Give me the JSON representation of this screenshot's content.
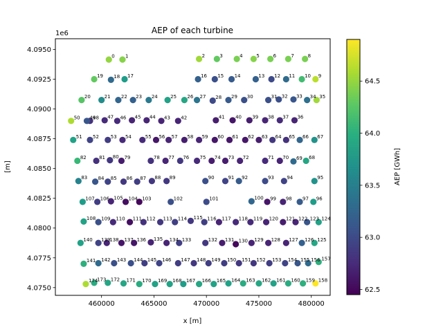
{
  "chart_data": {
    "type": "scatter",
    "title": "AEP of each turbine",
    "xlabel": "x [m]",
    "ylabel": "[m]",
    "y_offset_label": "1e6",
    "colorbar_label": "AEP [GWh]",
    "colormap": "viridis",
    "clim": [
      62.45,
      64.9
    ],
    "colorbar_ticks": [
      "62.5",
      "63.0",
      "63.5",
      "64.0",
      "64.5"
    ],
    "colorbar_tick_values": [
      62.5,
      63.0,
      63.5,
      64.0,
      64.5
    ],
    "xlim": [
      455600,
      481800
    ],
    "ylim": [
      4074350,
      4095900
    ],
    "x_ticks": [
      "460000",
      "465000",
      "470000",
      "475000",
      "480000"
    ],
    "x_tick_values": [
      460000,
      465000,
      470000,
      475000,
      480000
    ],
    "y_ticks": [
      "4.0750",
      "4.0775",
      "4.0800",
      "4.0825",
      "4.0850",
      "4.0875",
      "4.0900",
      "4.0925",
      "4.0950"
    ],
    "y_tick_values": [
      4075000,
      4077500,
      4080000,
      4082500,
      4085000,
      4087500,
      4090000,
      4092500,
      4095000
    ],
    "points": [
      {
        "label": "0",
        "x": 460700,
        "y": 4094150,
        "aep": 64.5
      },
      {
        "label": "1",
        "x": 462000,
        "y": 4094150,
        "aep": 64.45
      },
      {
        "label": "2",
        "x": 469300,
        "y": 4094200,
        "aep": 64.55
      },
      {
        "label": "3",
        "x": 471000,
        "y": 4094200,
        "aep": 64.3
      },
      {
        "label": "4",
        "x": 472900,
        "y": 4094200,
        "aep": 64.4
      },
      {
        "label": "5",
        "x": 474500,
        "y": 4094200,
        "aep": 64.45
      },
      {
        "label": "6",
        "x": 476100,
        "y": 4094200,
        "aep": 64.4
      },
      {
        "label": "7",
        "x": 477800,
        "y": 4094200,
        "aep": 64.4
      },
      {
        "label": "8",
        "x": 479400,
        "y": 4094200,
        "aep": 64.4
      },
      {
        "label": "9",
        "x": 480400,
        "y": 4092500,
        "aep": 64.65
      },
      {
        "label": "10",
        "x": 479100,
        "y": 4092500,
        "aep": 64.15
      },
      {
        "label": "11",
        "x": 477600,
        "y": 4092500,
        "aep": 63.3
      },
      {
        "label": "12",
        "x": 476200,
        "y": 4092500,
        "aep": 63.0
      },
      {
        "label": "13",
        "x": 474700,
        "y": 4092500,
        "aep": 63.2
      },
      {
        "label": "14",
        "x": 472400,
        "y": 4092500,
        "aep": 63.15
      },
      {
        "label": "15",
        "x": 470800,
        "y": 4092500,
        "aep": 63.05
      },
      {
        "label": "16",
        "x": 469200,
        "y": 4092500,
        "aep": 63.2
      },
      {
        "label": "17",
        "x": 462200,
        "y": 4092500,
        "aep": 63.8
      },
      {
        "label": "18",
        "x": 460900,
        "y": 4092450,
        "aep": 63.3
      },
      {
        "label": "19",
        "x": 459300,
        "y": 4092500,
        "aep": 64.3
      },
      {
        "label": "20",
        "x": 458100,
        "y": 4090750,
        "aep": 64.25
      },
      {
        "label": "21",
        "x": 460000,
        "y": 4090750,
        "aep": 63.65
      },
      {
        "label": "22",
        "x": 461600,
        "y": 4090750,
        "aep": 63.25
      },
      {
        "label": "23",
        "x": 463000,
        "y": 4090750,
        "aep": 63.2
      },
      {
        "label": "24",
        "x": 464500,
        "y": 4090750,
        "aep": 63.45
      },
      {
        "label": "25",
        "x": 466300,
        "y": 4090750,
        "aep": 63.85
      },
      {
        "label": "26",
        "x": 467900,
        "y": 4090750,
        "aep": 63.9
      },
      {
        "label": "27",
        "x": 469100,
        "y": 4090750,
        "aep": 63.4
      },
      {
        "label": "28",
        "x": 470600,
        "y": 4090700,
        "aep": 63.0
      },
      {
        "label": "29",
        "x": 472100,
        "y": 4090750,
        "aep": 63.15
      },
      {
        "label": "30",
        "x": 473600,
        "y": 4090750,
        "aep": 63.05
      },
      {
        "label": "31",
        "x": 475900,
        "y": 4090750,
        "aep": 63.05
      },
      {
        "label": "32",
        "x": 476900,
        "y": 4090800,
        "aep": 63.05
      },
      {
        "label": "33",
        "x": 478300,
        "y": 4090800,
        "aep": 63.1
      },
      {
        "label": "34",
        "x": 479600,
        "y": 4090750,
        "aep": 63.35
      },
      {
        "label": "35",
        "x": 480500,
        "y": 4090750,
        "aep": 64.55
      },
      {
        "label": "36",
        "x": 478400,
        "y": 4089050,
        "aep": 62.7
      },
      {
        "label": "37",
        "x": 477000,
        "y": 4089050,
        "aep": 62.75
      },
      {
        "label": "38",
        "x": 475600,
        "y": 4089050,
        "aep": 62.7
      },
      {
        "label": "39",
        "x": 474100,
        "y": 4089050,
        "aep": 62.65
      },
      {
        "label": "40",
        "x": 472500,
        "y": 4089050,
        "aep": 62.6
      },
      {
        "label": "41",
        "x": 470900,
        "y": 4089050,
        "aep": 62.65
      },
      {
        "label": "42",
        "x": 467300,
        "y": 4089000,
        "aep": 62.7
      },
      {
        "label": "43",
        "x": 465700,
        "y": 4089000,
        "aep": 62.7
      },
      {
        "label": "44",
        "x": 464300,
        "y": 4089050,
        "aep": 62.7
      },
      {
        "label": "45",
        "x": 462900,
        "y": 4089050,
        "aep": 62.7
      },
      {
        "label": "46",
        "x": 461500,
        "y": 4089000,
        "aep": 62.75
      },
      {
        "label": "47",
        "x": 460300,
        "y": 4089050,
        "aep": 62.75
      },
      {
        "label": "48",
        "x": 458900,
        "y": 4089000,
        "aep": 62.8
      },
      {
        "label": "49",
        "x": 458600,
        "y": 4089000,
        "aep": 63.1
      },
      {
        "label": "50",
        "x": 457100,
        "y": 4089000,
        "aep": 64.6
      },
      {
        "label": "51",
        "x": 457300,
        "y": 4087400,
        "aep": 63.85
      },
      {
        "label": "52",
        "x": 458900,
        "y": 4087400,
        "aep": 62.95
      },
      {
        "label": "53",
        "x": 460600,
        "y": 4087400,
        "aep": 62.9
      },
      {
        "label": "54",
        "x": 462000,
        "y": 4087400,
        "aep": 62.75
      },
      {
        "label": "55",
        "x": 463900,
        "y": 4087400,
        "aep": 62.75
      },
      {
        "label": "56",
        "x": 465200,
        "y": 4087400,
        "aep": 62.6
      },
      {
        "label": "57",
        "x": 466400,
        "y": 4087400,
        "aep": 62.7
      },
      {
        "label": "58",
        "x": 467900,
        "y": 4087400,
        "aep": 62.65
      },
      {
        "label": "59",
        "x": 469300,
        "y": 4087400,
        "aep": 62.7
      },
      {
        "label": "60",
        "x": 470800,
        "y": 4087400,
        "aep": 62.6
      },
      {
        "label": "61",
        "x": 472200,
        "y": 4087400,
        "aep": 62.6
      },
      {
        "label": "62",
        "x": 473700,
        "y": 4087400,
        "aep": 62.6
      },
      {
        "label": "63",
        "x": 475000,
        "y": 4087400,
        "aep": 62.65
      },
      {
        "label": "64",
        "x": 476300,
        "y": 4087400,
        "aep": 62.85
      },
      {
        "label": "65",
        "x": 477600,
        "y": 4087400,
        "aep": 62.8
      },
      {
        "label": "66",
        "x": 478900,
        "y": 4087400,
        "aep": 63.25
      },
      {
        "label": "67",
        "x": 480300,
        "y": 4087400,
        "aep": 63.7
      },
      {
        "label": "68",
        "x": 479500,
        "y": 4085650,
        "aep": 63.9
      },
      {
        "label": "69",
        "x": 478300,
        "y": 4085600,
        "aep": 63.3
      },
      {
        "label": "70",
        "x": 477000,
        "y": 4085650,
        "aep": 62.7
      },
      {
        "label": "71",
        "x": 475600,
        "y": 4085650,
        "aep": 62.75
      },
      {
        "label": "72",
        "x": 473200,
        "y": 4085650,
        "aep": 62.7
      },
      {
        "label": "73",
        "x": 471800,
        "y": 4085650,
        "aep": 62.65
      },
      {
        "label": "74",
        "x": 470500,
        "y": 4085650,
        "aep": 62.65
      },
      {
        "label": "75",
        "x": 469100,
        "y": 4085650,
        "aep": 62.75
      },
      {
        "label": "76",
        "x": 467500,
        "y": 4085650,
        "aep": 62.85
      },
      {
        "label": "77",
        "x": 466100,
        "y": 4085650,
        "aep": 62.7
      },
      {
        "label": "78",
        "x": 464700,
        "y": 4085650,
        "aep": 62.8
      },
      {
        "label": "79",
        "x": 461900,
        "y": 4085650,
        "aep": 62.65
      },
      {
        "label": "80",
        "x": 460800,
        "y": 4085700,
        "aep": 62.85
      },
      {
        "label": "81",
        "x": 459500,
        "y": 4085650,
        "aep": 62.8
      },
      {
        "label": "82",
        "x": 457700,
        "y": 4085650,
        "aep": 64.1
      },
      {
        "label": "83",
        "x": 457800,
        "y": 4083950,
        "aep": 63.55
      },
      {
        "label": "84",
        "x": 459400,
        "y": 4083900,
        "aep": 63.1
      },
      {
        "label": "85",
        "x": 460600,
        "y": 4083900,
        "aep": 62.95
      },
      {
        "label": "86",
        "x": 462100,
        "y": 4083900,
        "aep": 62.85
      },
      {
        "label": "87",
        "x": 463400,
        "y": 4083900,
        "aep": 62.9
      },
      {
        "label": "88",
        "x": 464800,
        "y": 4083950,
        "aep": 62.85
      },
      {
        "label": "89",
        "x": 466200,
        "y": 4083950,
        "aep": 62.85
      },
      {
        "label": "90",
        "x": 469900,
        "y": 4083950,
        "aep": 63.05
      },
      {
        "label": "91",
        "x": 471800,
        "y": 4083950,
        "aep": 62.95
      },
      {
        "label": "92",
        "x": 473100,
        "y": 4083950,
        "aep": 63.15
      },
      {
        "label": "93",
        "x": 475600,
        "y": 4083950,
        "aep": 63.0
      },
      {
        "label": "94",
        "x": 477400,
        "y": 4083950,
        "aep": 62.95
      },
      {
        "label": "95",
        "x": 480300,
        "y": 4083950,
        "aep": 63.7
      },
      {
        "label": "96",
        "x": 480200,
        "y": 4082200,
        "aep": 63.8
      },
      {
        "label": "97",
        "x": 478900,
        "y": 4082200,
        "aep": 63.15
      },
      {
        "label": "98",
        "x": 477300,
        "y": 4082200,
        "aep": 62.7
      },
      {
        "label": "99",
        "x": 475800,
        "y": 4082200,
        "aep": 62.6
      },
      {
        "label": "100",
        "x": 474300,
        "y": 4082250,
        "aep": 63.25
      },
      {
        "label": "101",
        "x": 470000,
        "y": 4082200,
        "aep": 63.0
      },
      {
        "label": "102",
        "x": 466600,
        "y": 4082200,
        "aep": 63.05
      },
      {
        "label": "103",
        "x": 463600,
        "y": 4082200,
        "aep": 62.5
      },
      {
        "label": "104",
        "x": 462300,
        "y": 4082200,
        "aep": 62.55
      },
      {
        "label": "105",
        "x": 460900,
        "y": 4082250,
        "aep": 62.7
      },
      {
        "label": "106",
        "x": 459600,
        "y": 4082200,
        "aep": 62.9
      },
      {
        "label": "107",
        "x": 458200,
        "y": 4082200,
        "aep": 63.8
      },
      {
        "label": "108",
        "x": 458300,
        "y": 4080550,
        "aep": 63.85
      },
      {
        "label": "109",
        "x": 459700,
        "y": 4080500,
        "aep": 63.05
      },
      {
        "label": "110",
        "x": 461100,
        "y": 4080500,
        "aep": 62.75
      },
      {
        "label": "111",
        "x": 462700,
        "y": 4080500,
        "aep": 62.55
      },
      {
        "label": "112",
        "x": 464000,
        "y": 4080500,
        "aep": 62.8
      },
      {
        "label": "113",
        "x": 465600,
        "y": 4080500,
        "aep": 62.85
      },
      {
        "label": "114",
        "x": 467000,
        "y": 4080500,
        "aep": 62.9
      },
      {
        "label": "115",
        "x": 468500,
        "y": 4080600,
        "aep": 62.85
      },
      {
        "label": "116",
        "x": 469800,
        "y": 4080500,
        "aep": 62.9
      },
      {
        "label": "117",
        "x": 471200,
        "y": 4080500,
        "aep": 62.7
      },
      {
        "label": "118",
        "x": 472800,
        "y": 4080500,
        "aep": 62.75
      },
      {
        "label": "119",
        "x": 474200,
        "y": 4080500,
        "aep": 62.75
      },
      {
        "label": "120",
        "x": 475700,
        "y": 4080500,
        "aep": 62.7
      },
      {
        "label": "121",
        "x": 477300,
        "y": 4080500,
        "aep": 62.65
      },
      {
        "label": "122",
        "x": 478500,
        "y": 4080500,
        "aep": 62.7
      },
      {
        "label": "123",
        "x": 479600,
        "y": 4080500,
        "aep": 63.1
      },
      {
        "label": "124",
        "x": 480700,
        "y": 4080500,
        "aep": 63.85
      },
      {
        "label": "125",
        "x": 480300,
        "y": 4078750,
        "aep": 63.9
      },
      {
        "label": "126",
        "x": 479100,
        "y": 4078750,
        "aep": 63.2
      },
      {
        "label": "127",
        "x": 477600,
        "y": 4078750,
        "aep": 62.7
      },
      {
        "label": "128",
        "x": 475900,
        "y": 4078750,
        "aep": 62.7
      },
      {
        "label": "129",
        "x": 474300,
        "y": 4078750,
        "aep": 62.7
      },
      {
        "label": "130",
        "x": 472800,
        "y": 4078650,
        "aep": 62.5
      },
      {
        "label": "131",
        "x": 471500,
        "y": 4078750,
        "aep": 62.65
      },
      {
        "label": "132",
        "x": 469900,
        "y": 4078750,
        "aep": 62.85
      },
      {
        "label": "133",
        "x": 467400,
        "y": 4078750,
        "aep": 62.9
      },
      {
        "label": "134",
        "x": 466200,
        "y": 4078750,
        "aep": 62.7
      },
      {
        "label": "135",
        "x": 464700,
        "y": 4078800,
        "aep": 62.7
      },
      {
        "label": "136",
        "x": 463100,
        "y": 4078750,
        "aep": 62.6
      },
      {
        "label": "137",
        "x": 461900,
        "y": 4078750,
        "aep": 62.6
      },
      {
        "label": "138",
        "x": 460500,
        "y": 4078750,
        "aep": 62.7
      },
      {
        "label": "139",
        "x": 459700,
        "y": 4078750,
        "aep": 62.95
      },
      {
        "label": "140",
        "x": 458000,
        "y": 4078750,
        "aep": 63.85
      },
      {
        "label": "141",
        "x": 458300,
        "y": 4077000,
        "aep": 64.0
      },
      {
        "label": "142",
        "x": 459700,
        "y": 4077050,
        "aep": 63.3
      },
      {
        "label": "143",
        "x": 461200,
        "y": 4077050,
        "aep": 63.05
      },
      {
        "label": "144",
        "x": 462800,
        "y": 4077050,
        "aep": 63.05
      },
      {
        "label": "145",
        "x": 464100,
        "y": 4077050,
        "aep": 62.9
      },
      {
        "label": "146",
        "x": 465500,
        "y": 4077050,
        "aep": 62.95
      },
      {
        "label": "147",
        "x": 467300,
        "y": 4077050,
        "aep": 62.9
      },
      {
        "label": "148",
        "x": 468800,
        "y": 4077050,
        "aep": 62.85
      },
      {
        "label": "149",
        "x": 470200,
        "y": 4077050,
        "aep": 62.9
      },
      {
        "label": "150",
        "x": 471700,
        "y": 4077050,
        "aep": 62.9
      },
      {
        "label": "151",
        "x": 473100,
        "y": 4077050,
        "aep": 62.85
      },
      {
        "label": "152",
        "x": 474500,
        "y": 4077050,
        "aep": 62.85
      },
      {
        "label": "153",
        "x": 476000,
        "y": 4077050,
        "aep": 62.9
      },
      {
        "label": "154",
        "x": 477500,
        "y": 4077050,
        "aep": 62.95
      },
      {
        "label": "155",
        "x": 478700,
        "y": 4077050,
        "aep": 63.1
      },
      {
        "label": "156",
        "x": 479700,
        "y": 4077050,
        "aep": 63.3
      },
      {
        "label": "157",
        "x": 480700,
        "y": 4077150,
        "aep": 64.0
      },
      {
        "label": "158",
        "x": 480400,
        "y": 4075350,
        "aep": 64.9
      },
      {
        "label": "159",
        "x": 479200,
        "y": 4075350,
        "aep": 64.0
      },
      {
        "label": "160",
        "x": 477800,
        "y": 4075350,
        "aep": 63.95
      },
      {
        "label": "161",
        "x": 476400,
        "y": 4075350,
        "aep": 63.85
      },
      {
        "label": "162",
        "x": 475000,
        "y": 4075350,
        "aep": 63.9
      },
      {
        "label": "163",
        "x": 473500,
        "y": 4075350,
        "aep": 63.95
      },
      {
        "label": "164",
        "x": 472100,
        "y": 4075350,
        "aep": 63.85
      },
      {
        "label": "165",
        "x": 470700,
        "y": 4075300,
        "aep": 63.85
      },
      {
        "label": "166",
        "x": 469300,
        "y": 4075300,
        "aep": 63.9
      },
      {
        "label": "167",
        "x": 467800,
        "y": 4075300,
        "aep": 63.8
      },
      {
        "label": "168",
        "x": 466500,
        "y": 4075300,
        "aep": 63.85
      },
      {
        "label": "169",
        "x": 465100,
        "y": 4075300,
        "aep": 63.85
      },
      {
        "label": "170",
        "x": 463600,
        "y": 4075300,
        "aep": 63.95
      },
      {
        "label": "171",
        "x": 462100,
        "y": 4075350,
        "aep": 63.9
      },
      {
        "label": "172",
        "x": 460600,
        "y": 4075400,
        "aep": 63.9
      },
      {
        "label": "173",
        "x": 459300,
        "y": 4075400,
        "aep": 63.95
      },
      {
        "label": "174",
        "x": 458500,
        "y": 4075300,
        "aep": 64.6
      }
    ]
  }
}
